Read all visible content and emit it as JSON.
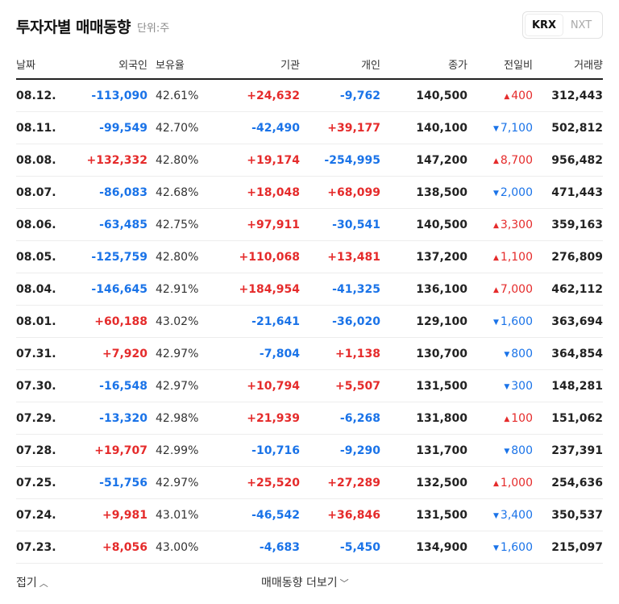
{
  "header": {
    "title": "투자자별 매매동향",
    "unit": "단위:주"
  },
  "market_tabs": [
    {
      "label": "KRX",
      "active": true
    },
    {
      "label": "NXT",
      "active": false
    }
  ],
  "columns": {
    "date": "날짜",
    "foreign": "외국인",
    "ratio": "보유율",
    "institution": "기관",
    "individual": "개인",
    "close": "종가",
    "change": "전일비",
    "volume": "거래량"
  },
  "rows": [
    {
      "date": "08.12.",
      "foreign": "-113,090",
      "ratio": "42.61%",
      "institution": "+24,632",
      "individual": "-9,762",
      "close": "140,500",
      "change_dir": "up",
      "change": "400",
      "volume": "312,443"
    },
    {
      "date": "08.11.",
      "foreign": "-99,549",
      "ratio": "42.70%",
      "institution": "-42,490",
      "individual": "+39,177",
      "close": "140,100",
      "change_dir": "down",
      "change": "7,100",
      "volume": "502,812"
    },
    {
      "date": "08.08.",
      "foreign": "+132,332",
      "ratio": "42.80%",
      "institution": "+19,174",
      "individual": "-254,995",
      "close": "147,200",
      "change_dir": "up",
      "change": "8,700",
      "volume": "956,482"
    },
    {
      "date": "08.07.",
      "foreign": "-86,083",
      "ratio": "42.68%",
      "institution": "+18,048",
      "individual": "+68,099",
      "close": "138,500",
      "change_dir": "down",
      "change": "2,000",
      "volume": "471,443"
    },
    {
      "date": "08.06.",
      "foreign": "-63,485",
      "ratio": "42.75%",
      "institution": "+97,911",
      "individual": "-30,541",
      "close": "140,500",
      "change_dir": "up",
      "change": "3,300",
      "volume": "359,163"
    },
    {
      "date": "08.05.",
      "foreign": "-125,759",
      "ratio": "42.80%",
      "institution": "+110,068",
      "individual": "+13,481",
      "close": "137,200",
      "change_dir": "up",
      "change": "1,100",
      "volume": "276,809"
    },
    {
      "date": "08.04.",
      "foreign": "-146,645",
      "ratio": "42.91%",
      "institution": "+184,954",
      "individual": "-41,325",
      "close": "136,100",
      "change_dir": "up",
      "change": "7,000",
      "volume": "462,112"
    },
    {
      "date": "08.01.",
      "foreign": "+60,188",
      "ratio": "43.02%",
      "institution": "-21,641",
      "individual": "-36,020",
      "close": "129,100",
      "change_dir": "down",
      "change": "1,600",
      "volume": "363,694"
    },
    {
      "date": "07.31.",
      "foreign": "+7,920",
      "ratio": "42.97%",
      "institution": "-7,804",
      "individual": "+1,138",
      "close": "130,700",
      "change_dir": "down",
      "change": "800",
      "volume": "364,854"
    },
    {
      "date": "07.30.",
      "foreign": "-16,548",
      "ratio": "42.97%",
      "institution": "+10,794",
      "individual": "+5,507",
      "close": "131,500",
      "change_dir": "down",
      "change": "300",
      "volume": "148,281"
    },
    {
      "date": "07.29.",
      "foreign": "-13,320",
      "ratio": "42.98%",
      "institution": "+21,939",
      "individual": "-6,268",
      "close": "131,800",
      "change_dir": "up",
      "change": "100",
      "volume": "151,062"
    },
    {
      "date": "07.28.",
      "foreign": "+19,707",
      "ratio": "42.99%",
      "institution": "-10,716",
      "individual": "-9,290",
      "close": "131,700",
      "change_dir": "down",
      "change": "800",
      "volume": "237,391"
    },
    {
      "date": "07.25.",
      "foreign": "-51,756",
      "ratio": "42.97%",
      "institution": "+25,520",
      "individual": "+27,289",
      "close": "132,500",
      "change_dir": "up",
      "change": "1,000",
      "volume": "254,636"
    },
    {
      "date": "07.24.",
      "foreign": "+9,981",
      "ratio": "43.01%",
      "institution": "-46,542",
      "individual": "+36,846",
      "close": "131,500",
      "change_dir": "down",
      "change": "3,400",
      "volume": "350,537"
    },
    {
      "date": "07.23.",
      "foreign": "+8,056",
      "ratio": "43.00%",
      "institution": "-4,683",
      "individual": "-5,450",
      "close": "134,900",
      "change_dir": "down",
      "change": "1,600",
      "volume": "215,097"
    }
  ],
  "footer": {
    "fold_label": "접기",
    "more_label": "매매동향 더보기"
  },
  "colors": {
    "up": "#e52b2b",
    "down": "#1a73e8"
  },
  "icons": {
    "up": "triangle-up-icon",
    "down": "triangle-down-icon",
    "fold": "chevron-up-icon",
    "more": "chevron-down-icon"
  }
}
